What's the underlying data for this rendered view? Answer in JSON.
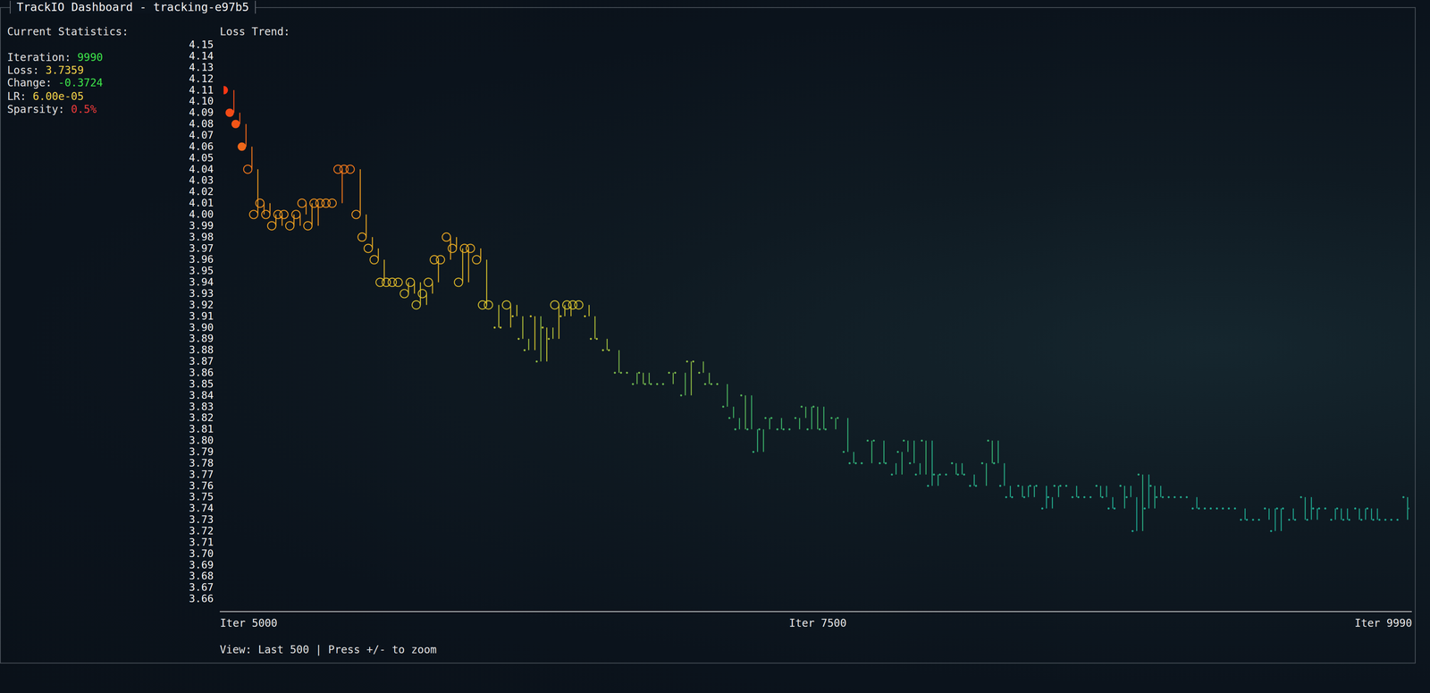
{
  "header": {
    "title": "TrackIO Dashboard - tracking-e97b5"
  },
  "stats": {
    "title": "Current Statistics:",
    "items": [
      {
        "label": "Iteration:",
        "value": 9990,
        "color": "#3ee04a"
      },
      {
        "label": "Loss:",
        "value": 3.7359,
        "color": "#f0d24a"
      },
      {
        "label": "Change:",
        "value": -0.3724,
        "color": "#3ee04a"
      },
      {
        "label": "LR:",
        "value": {
          "value": 6e-05,
          "label": "6.00e-05"
        },
        "color": "#f0d24a"
      },
      {
        "label": "Sparsity:",
        "value": {
          "value": 0.5,
          "label": "0.5%"
        },
        "color": "#e83a3a"
      }
    ]
  },
  "chart_data": {
    "type": "scatter",
    "title": "Loss Trend:",
    "caption": "View: Last 500 | Press +/- to zoom",
    "xlim": [
      5000,
      9990
    ],
    "xticks": [
      {
        "value": 5000,
        "label": "Iter 5000"
      },
      {
        "value": 7500,
        "label": "Iter 7500"
      },
      {
        "value": 9990,
        "label": "Iter 9990"
      }
    ],
    "ylim": [
      3.66,
      4.15
    ],
    "yticks": [
      4.15,
      4.14,
      4.13,
      4.12,
      4.11,
      {
        "value": 4.1,
        "label": "4.10"
      },
      4.09,
      4.08,
      4.07,
      4.06,
      4.05,
      4.04,
      4.03,
      4.02,
      4.01,
      {
        "value": 4,
        "label": "4.00"
      },
      3.99,
      3.98,
      3.97,
      3.96,
      3.95,
      3.94,
      3.93,
      3.92,
      3.91,
      {
        "value": 3.9,
        "label": "3.90"
      },
      3.89,
      3.88,
      3.87,
      3.86,
      3.85,
      3.84,
      3.83,
      3.82,
      3.81,
      {
        "value": 3.8,
        "label": "3.80"
      },
      3.79,
      3.78,
      3.77,
      3.76,
      3.75,
      3.74,
      3.73,
      3.72,
      3.71,
      {
        "value": 3.7,
        "label": "3.70"
      },
      3.69,
      3.68,
      3.67,
      3.66
    ],
    "grid": false,
    "series": [
      {
        "marker": "filled-circle",
        "x": [
          5000,
          5025,
          5050,
          5076
        ],
        "values": [
          4.11,
          4.09,
          4.08,
          4.06
        ]
      },
      {
        "marker": "circle",
        "x": [
          5101,
          5126,
          5152,
          5177,
          5202,
          5228,
          5253,
          5278,
          5304,
          5329,
          5354,
          5380,
          5405,
          5430,
          5456,
          5481,
          5506,
          5532,
          5557,
          5582,
          5608,
          5633,
          5658,
          5684,
          5709,
          5734,
          5760,
          5785,
          5810,
          5836,
          5861,
          5886,
          5912,
          5937,
          5962,
          5988,
          6013,
          6038,
          6064,
          6089,
          6114,
          6190,
          6393,
          6444,
          6469,
          6494
        ],
        "values": [
          4.04,
          4,
          4.01,
          4,
          3.99,
          4,
          4,
          3.99,
          4,
          4.01,
          3.99,
          4.01,
          4.01,
          4.01,
          4.01,
          4.04,
          4.04,
          4.04,
          4,
          3.98,
          3.97,
          3.96,
          3.94,
          3.94,
          3.94,
          3.94,
          3.93,
          3.94,
          3.92,
          3.93,
          3.94,
          3.96,
          3.96,
          3.98,
          3.97,
          3.94,
          3.97,
          3.97,
          3.96,
          3.92,
          3.92,
          3.92,
          3.92,
          3.92,
          3.92,
          3.92
        ]
      },
      {
        "marker": "dot",
        "x": [
          6140,
          6165,
          6216,
          6241,
          6266,
          6292,
          6317,
          6342,
          6368,
          6418,
          6520,
          6545,
          6570,
          6596,
          6621,
          6646,
          6672,
          6697,
          6722,
          6748,
          6773,
          6798,
          6824,
          6849,
          6874,
          6900,
          6925,
          6950,
          6976,
          7001,
          7026,
          7052,
          7077,
          7102,
          7128,
          7153,
          7178,
          7204,
          7229,
          7254,
          7280,
          7305,
          7330,
          7356,
          7381,
          7406,
          7432,
          7457,
          7482,
          7508,
          7533,
          7558,
          7584,
          7609,
          7634,
          7660,
          7685,
          7710,
          7736,
          7761,
          7786,
          7812,
          7837,
          7862,
          7888,
          7913,
          7938,
          7964,
          7989,
          8014,
          8040,
          8065,
          8090,
          8116,
          8141,
          8166,
          8192,
          8217,
          8242,
          8268,
          8293,
          8318,
          8344,
          8369,
          8394,
          8420,
          8445,
          8470,
          8496,
          8521,
          8546,
          8572,
          8597,
          8622,
          8648,
          8673,
          8698,
          8724,
          8749,
          8774,
          8800,
          8825,
          8850,
          8876,
          8901,
          8926,
          8952,
          8977,
          9002,
          9028,
          9053,
          9078,
          9104,
          9129,
          9154,
          9180,
          9205,
          9230,
          9256,
          9281,
          9306,
          9332,
          9357,
          9382,
          9408,
          9433,
          9458,
          9484,
          9509,
          9534,
          9560,
          9585,
          9610,
          9636,
          9661,
          9686,
          9712,
          9737,
          9762,
          9788,
          9813,
          9838,
          9864,
          9889,
          9914,
          9940,
          9965,
          9990
        ],
        "values": [
          3.9,
          3.9,
          3.91,
          3.89,
          3.88,
          3.91,
          3.87,
          3.9,
          3.89,
          3.91,
          3.91,
          3.89,
          3.89,
          3.88,
          3.88,
          3.86,
          3.86,
          3.86,
          3.85,
          3.86,
          3.85,
          3.85,
          3.85,
          3.85,
          3.86,
          3.86,
          3.84,
          3.87,
          3.87,
          3.86,
          3.85,
          3.85,
          3.85,
          3.83,
          3.82,
          3.81,
          3.84,
          3.81,
          3.79,
          3.81,
          3.82,
          3.82,
          3.81,
          3.81,
          3.81,
          3.82,
          3.83,
          3.81,
          3.83,
          3.81,
          3.81,
          3.82,
          3.82,
          3.79,
          3.78,
          3.78,
          3.78,
          3.8,
          3.8,
          3.78,
          3.78,
          3.77,
          3.79,
          3.8,
          3.78,
          3.77,
          3.8,
          3.76,
          3.77,
          3.77,
          3.77,
          3.78,
          3.77,
          3.77,
          3.76,
          3.76,
          3.78,
          3.8,
          3.78,
          3.76,
          3.75,
          3.75,
          3.76,
          3.75,
          3.76,
          3.76,
          3.74,
          3.75,
          3.76,
          3.76,
          3.76,
          3.75,
          3.75,
          3.75,
          3.75,
          3.76,
          3.75,
          3.74,
          3.74,
          3.76,
          3.75,
          3.72,
          3.77,
          3.74,
          3.76,
          3.75,
          3.75,
          3.75,
          3.75,
          3.75,
          3.75,
          3.74,
          3.74,
          3.74,
          3.74,
          3.74,
          3.74,
          3.74,
          3.74,
          3.73,
          3.73,
          3.73,
          3.73,
          3.74,
          3.72,
          3.74,
          3.74,
          3.73,
          3.73,
          3.75,
          3.73,
          3.74,
          3.74,
          3.74,
          3.73,
          3.74,
          3.73,
          3.73,
          3.74,
          3.73,
          3.74,
          3.73,
          3.73,
          3.73,
          3.73,
          3.73,
          3.75,
          3.74
        ]
      }
    ]
  }
}
